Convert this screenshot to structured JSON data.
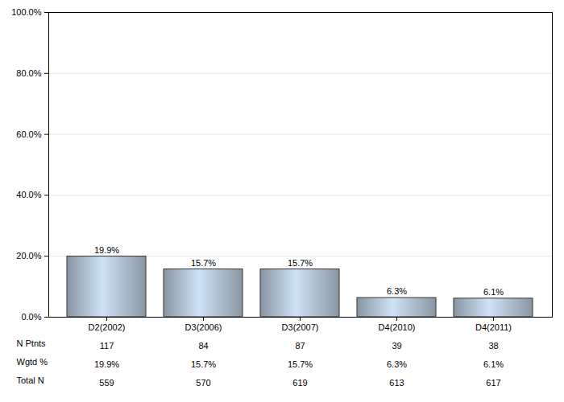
{
  "chart_data": {
    "type": "bar",
    "categories": [
      "D2(2002)",
      "D3(2006)",
      "D3(2007)",
      "D4(2010)",
      "D4(2011)"
    ],
    "values": [
      19.9,
      15.7,
      15.7,
      6.3,
      6.1
    ],
    "value_labels": [
      "19.9%",
      "15.7%",
      "15.7%",
      "6.3%",
      "6.1%"
    ],
    "data_labels": true,
    "color": "#a8b8c8",
    "ylim": [
      0,
      100
    ],
    "yticks": [
      {
        "value": 0,
        "label": "0.0%"
      },
      {
        "value": 20,
        "label": "20.0%"
      },
      {
        "value": 40,
        "label": "40.0%"
      },
      {
        "value": 60,
        "label": "60.0%"
      },
      {
        "value": 80,
        "label": "80.0%"
      },
      {
        "value": 100,
        "label": "100.0%"
      }
    ],
    "grid": true
  },
  "table": {
    "rows": [
      {
        "label": "N Ptnts",
        "values": [
          117,
          84,
          87,
          39,
          38
        ]
      },
      {
        "label": "Wgtd %",
        "values": [
          19.9,
          15.7,
          15.7,
          6.3,
          6.1
        ],
        "value_labels": [
          "19.9%",
          "15.7%",
          "15.7%",
          "6.3%",
          "6.1%"
        ]
      },
      {
        "label": "Total N",
        "values": [
          559,
          570,
          619,
          613,
          617
        ]
      }
    ]
  }
}
